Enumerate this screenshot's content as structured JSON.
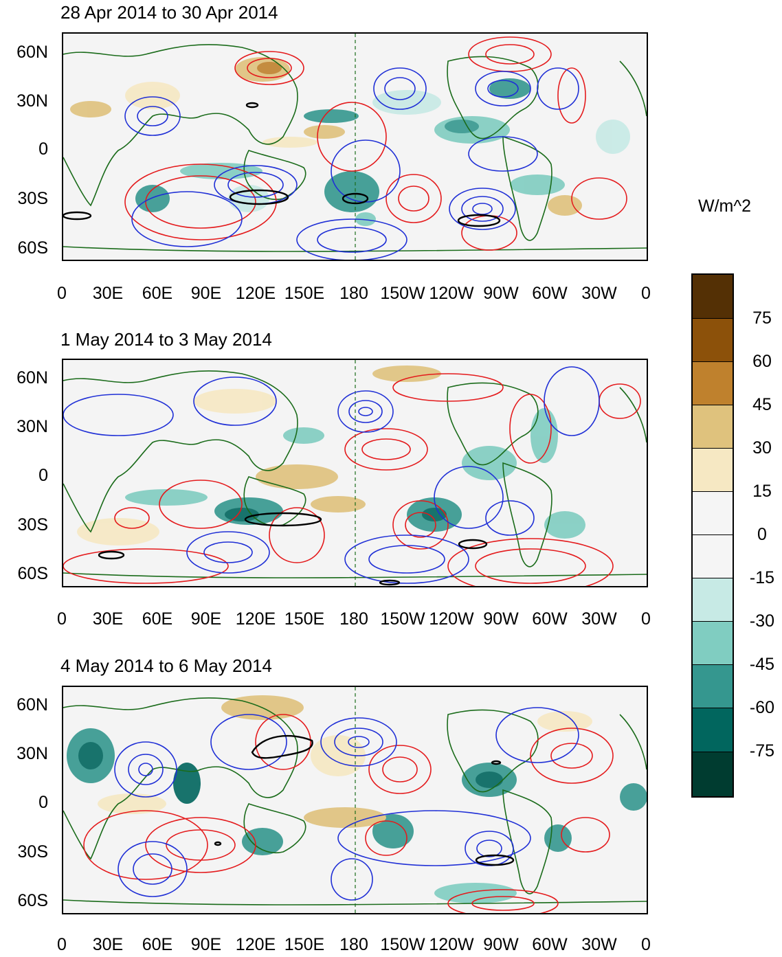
{
  "units": "W/m^2",
  "panels": [
    {
      "title": "28 Apr 2014 to 30 Apr 2014"
    },
    {
      "title": "1 May 2014 to 3 May 2014"
    },
    {
      "title": "4 May 2014 to 6 May 2014"
    }
  ],
  "y_labels": [
    "60N",
    "30N",
    "0",
    "30S",
    "60S"
  ],
  "x_labels": [
    "0",
    "30E",
    "60E",
    "90E",
    "120E",
    "150E",
    "180",
    "150W",
    "120W",
    "90W",
    "60W",
    "30W",
    "0"
  ],
  "colorbar": {
    "labels": [
      "75",
      "60",
      "45",
      "30",
      "15",
      "0",
      "-15",
      "-30",
      "-45",
      "-60",
      "-75"
    ],
    "colors": [
      "#543005",
      "#8c510a",
      "#bf812d",
      "#dfc27d",
      "#f6e8c3",
      "#f5f5f5",
      "#f5f5f5",
      "#c7eae5",
      "#80cdc1",
      "#35978f",
      "#01665e",
      "#003c30"
    ]
  },
  "legend_colors": {
    "positive_contour": "#e41a1c",
    "negative_contour": "#1f2fd6",
    "coastline": "#1a6b1a",
    "significance": "#000000"
  }
}
